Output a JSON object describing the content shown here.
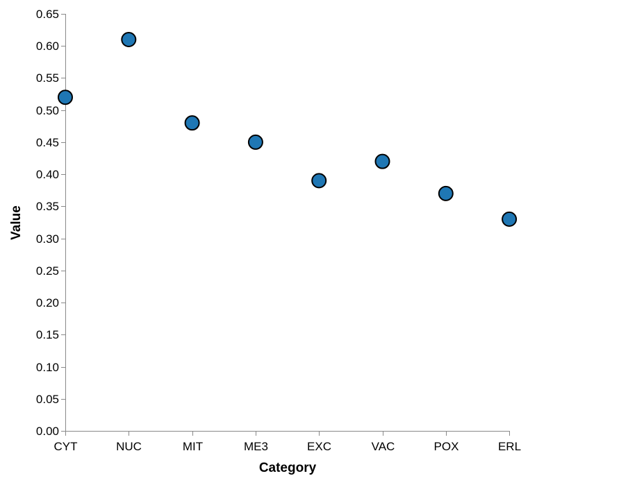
{
  "chart_data": {
    "type": "scatter",
    "title": "",
    "xlabel": "Category",
    "ylabel": "Value",
    "categories": [
      "CYT",
      "NUC",
      "MIT",
      "ME3",
      "EXC",
      "VAC",
      "POX",
      "ERL"
    ],
    "values": [
      0.52,
      0.61,
      0.48,
      0.45,
      0.39,
      0.42,
      0.37,
      0.33
    ],
    "ylim": [
      0,
      0.65
    ],
    "yticks": [
      "0.00",
      "0.05",
      "0.10",
      "0.15",
      "0.20",
      "0.25",
      "0.30",
      "0.35",
      "0.40",
      "0.45",
      "0.50",
      "0.55",
      "0.60",
      "0.65"
    ],
    "grid": false,
    "legend": "none",
    "colors": {
      "marker_fill": "#1f77b4",
      "marker_stroke": "#000000",
      "axis": "#888888"
    }
  }
}
